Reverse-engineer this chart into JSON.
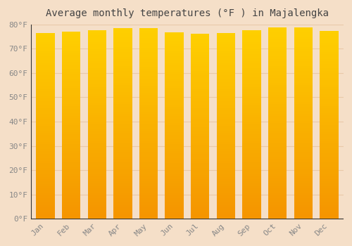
{
  "title": "Average monthly temperatures (°F ) in Majalengka",
  "months": [
    "Jan",
    "Feb",
    "Mar",
    "Apr",
    "May",
    "Jun",
    "Jul",
    "Aug",
    "Sep",
    "Oct",
    "Nov",
    "Dec"
  ],
  "values": [
    76.5,
    77.0,
    77.5,
    78.5,
    78.3,
    76.8,
    76.1,
    76.5,
    77.5,
    78.6,
    78.6,
    77.3
  ],
  "bar_color_top": "#FFD000",
  "bar_color_mid": "#FFA800",
  "bar_color_bottom": "#F59500",
  "background_color": "#f5dfc8",
  "plot_bg_color": "#f5dfc8",
  "grid_color": "#e8c9a8",
  "ylim": [
    0,
    80
  ],
  "yticks": [
    0,
    10,
    20,
    30,
    40,
    50,
    60,
    70,
    80
  ],
  "title_fontsize": 10,
  "tick_fontsize": 8,
  "tick_color": "#888888",
  "spine_color": "#333333"
}
